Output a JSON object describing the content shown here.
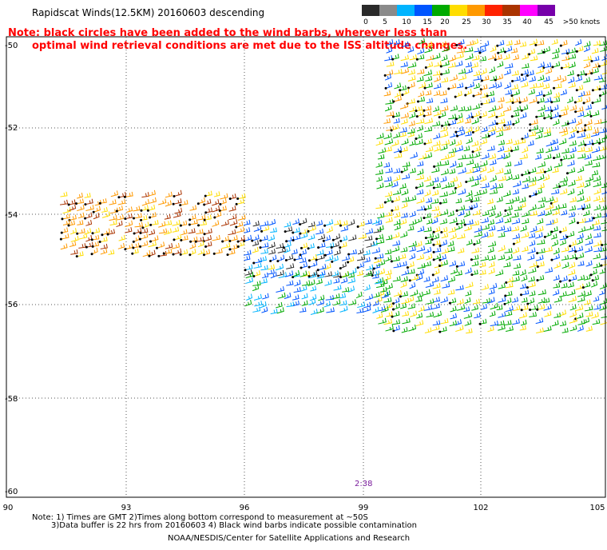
{
  "title": "Rapidscat Winds(12.5KM) 20160603 descending",
  "note_line1": "Note: black circles have been added to the wind barbs, wherever less than",
  "note_line2": "optimal wind retrieval conditions are met due to the ISS altitude changes.",
  "legend": {
    "labels": [
      "0",
      "5",
      "10",
      "15",
      "20",
      "25",
      "30",
      "35",
      "40",
      "45",
      ">50 knots"
    ],
    "colors": [
      "#2a2a2a",
      "#8a8a8a",
      "#00b4ff",
      "#0055ff",
      "#00aa00",
      "#ffdd00",
      "#ff9900",
      "#ff2200",
      "#aa3300",
      "#ff00ff",
      "#7700aa"
    ]
  },
  "lat_ticks": [
    "-50",
    "-52",
    "-54",
    "-56",
    "-58",
    "-60"
  ],
  "lon_ticks": [
    "90",
    "93",
    "96",
    "99",
    "102",
    "105"
  ],
  "time_label": "2:38",
  "footer_line1": "Note: 1) Times are GMT 2)Times along bottom correspond to measurement at ~50S",
  "footer_line2": "3)Data buffer is 22 hrs from 20160603 4) Black wind barbs indicate possible contamination",
  "footer_line3": "NOAA/NESDIS/Center for Satellite Applications and Research"
}
